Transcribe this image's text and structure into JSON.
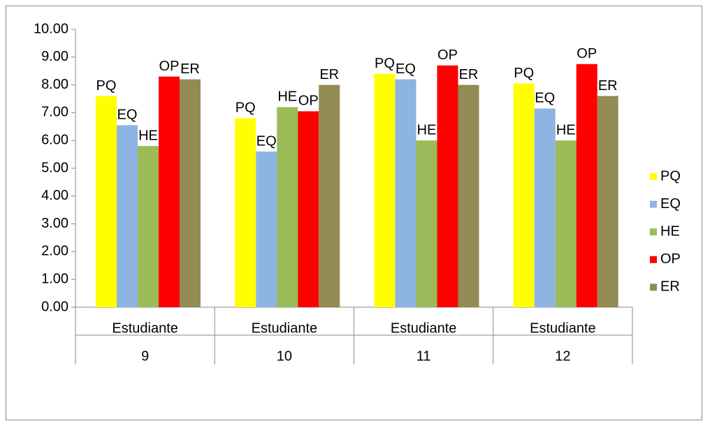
{
  "chart_data": {
    "type": "bar",
    "categories": [
      [
        "Estudiante",
        "9"
      ],
      [
        "Estudiante",
        "10"
      ],
      [
        "Estudiante",
        "11"
      ],
      [
        "Estudiante",
        "12"
      ]
    ],
    "series": [
      {
        "name": "PQ",
        "color": "#ffff00",
        "values": [
          7.6,
          6.8,
          8.4,
          8.05
        ]
      },
      {
        "name": "EQ",
        "color": "#8db4e2",
        "values": [
          6.55,
          5.6,
          8.2,
          7.15
        ]
      },
      {
        "name": "HE",
        "color": "#9bbb59",
        "values": [
          5.8,
          7.2,
          6.0,
          6.0
        ]
      },
      {
        "name": "OP",
        "color": "#ff0000",
        "values": [
          8.3,
          7.05,
          8.7,
          8.75
        ]
      },
      {
        "name": "ER",
        "color": "#948a54",
        "values": [
          8.2,
          8.0,
          8.0,
          7.6
        ]
      }
    ],
    "ylim": [
      0,
      10
    ],
    "yticks": [
      {
        "value": 0,
        "label": "0.00"
      },
      {
        "value": 1,
        "label": "1.00"
      },
      {
        "value": 2,
        "label": "2.00"
      },
      {
        "value": 3,
        "label": "3.00"
      },
      {
        "value": 4,
        "label": "4.00"
      },
      {
        "value": 5,
        "label": "5.00"
      },
      {
        "value": 6,
        "label": "6.00"
      },
      {
        "value": 7,
        "label": "7.00"
      },
      {
        "value": 8,
        "label": "8.00"
      },
      {
        "value": 9,
        "label": "9.00"
      },
      {
        "value": 10,
        "label": "10.00"
      }
    ],
    "grid": false,
    "legend": "right"
  }
}
